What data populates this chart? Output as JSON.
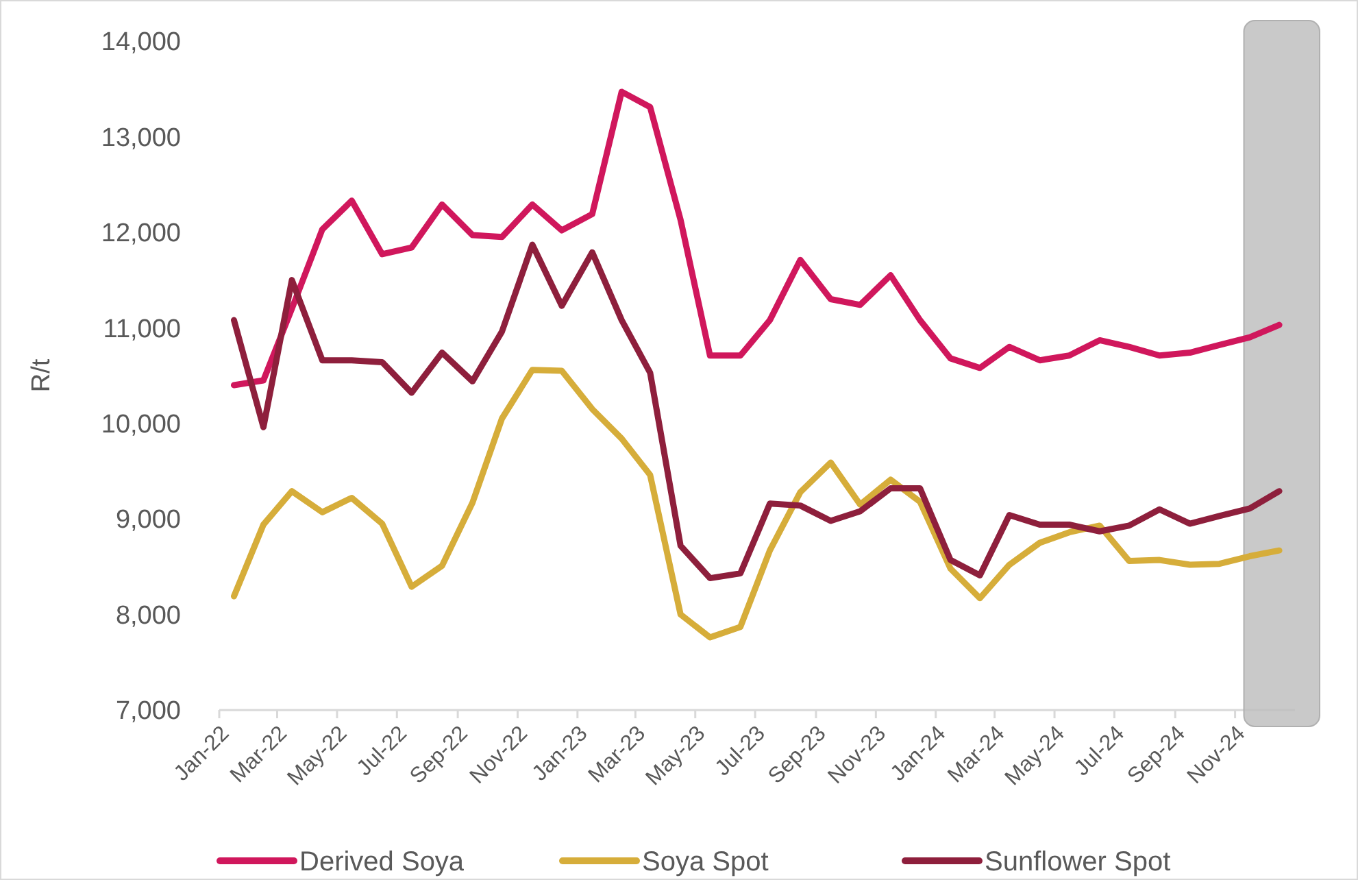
{
  "chart_data": {
    "type": "line",
    "ylabel": "R/t",
    "x": [
      "2022-01-16",
      "2022-02-15",
      "2022-03-16",
      "2022-04-16",
      "2022-05-16",
      "2022-06-16",
      "2022-07-16",
      "2022-08-16",
      "2022-09-16",
      "2022-10-16",
      "2022-11-16",
      "2022-12-16",
      "2023-01-16",
      "2023-02-15",
      "2023-03-16",
      "2023-04-16",
      "2023-05-16",
      "2023-06-16",
      "2023-07-16",
      "2023-08-16",
      "2023-09-16",
      "2023-10-16",
      "2023-11-16",
      "2023-12-16",
      "2024-01-16",
      "2024-02-15",
      "2024-03-16",
      "2024-04-16",
      "2024-05-16",
      "2024-06-16",
      "2024-07-16",
      "2024-08-16",
      "2024-09-16",
      "2024-10-16",
      "2024-11-16",
      "2024-12-16"
    ],
    "series": [
      {
        "name": "Derived Soya",
        "color": "#d0175c",
        "values": [
          10400,
          10450,
          11200,
          12030,
          12330,
          11770,
          11840,
          12290,
          11970,
          11950,
          12290,
          12020,
          12190,
          13470,
          13310,
          12130,
          10710,
          10710,
          11080,
          11710,
          11300,
          11240,
          11550,
          11080,
          10680,
          10580,
          10800,
          10660,
          10710,
          10870,
          10800,
          10710,
          10740,
          10820,
          10900,
          11030
        ]
      },
      {
        "name": "Soya Spot",
        "color": "#d6ad3a",
        "values": [
          8190,
          8940,
          9290,
          9070,
          9220,
          8950,
          8290,
          8510,
          9170,
          10050,
          10560,
          10550,
          10150,
          9840,
          9460,
          8000,
          7760,
          7870,
          8670,
          9280,
          9590,
          9150,
          9410,
          9180,
          8480,
          8170,
          8520,
          8750,
          8860,
          8930,
          8560,
          8570,
          8520,
          8530,
          8610,
          8670
        ]
      },
      {
        "name": "Sunflower Spot",
        "color": "#8e1f3c",
        "values": [
          11080,
          9960,
          11500,
          10660,
          10660,
          10640,
          10320,
          10740,
          10440,
          10960,
          11870,
          11230,
          11790,
          11080,
          10530,
          8720,
          8380,
          8430,
          9160,
          9140,
          8980,
          9080,
          9320,
          9320,
          8570,
          8410,
          9040,
          8940,
          8940,
          8870,
          8930,
          9100,
          8950,
          9030,
          9110,
          9290
        ]
      }
    ],
    "xlim": [
      "2022-01-01",
      "2025-01-01"
    ],
    "xticks": [
      {
        "value": "2022-01-01",
        "label": "Jan-22"
      },
      {
        "value": "2022-03-01",
        "label": "Mar-22"
      },
      {
        "value": "2022-05-01",
        "label": "May-22"
      },
      {
        "value": "2022-07-01",
        "label": "Jul-22"
      },
      {
        "value": "2022-09-01",
        "label": "Sep-22"
      },
      {
        "value": "2022-11-01",
        "label": "Nov-22"
      },
      {
        "value": "2023-01-01",
        "label": "Jan-23"
      },
      {
        "value": "2023-03-01",
        "label": "Mar-23"
      },
      {
        "value": "2023-05-01",
        "label": "May-23"
      },
      {
        "value": "2023-07-01",
        "label": "Jul-23"
      },
      {
        "value": "2023-09-01",
        "label": "Sep-23"
      },
      {
        "value": "2023-11-01",
        "label": "Nov-23"
      },
      {
        "value": "2024-01-01",
        "label": "Jan-24"
      },
      {
        "value": "2024-03-01",
        "label": "Mar-24"
      },
      {
        "value": "2024-05-01",
        "label": "May-24"
      },
      {
        "value": "2024-07-01",
        "label": "Jul-24"
      },
      {
        "value": "2024-09-01",
        "label": "Sep-24"
      },
      {
        "value": "2024-11-01",
        "label": "Nov-24"
      }
    ],
    "ylim": [
      7000,
      14000
    ],
    "yticks": [
      {
        "value": 7000,
        "label": "7,000"
      },
      {
        "value": 8000,
        "label": "8,000"
      },
      {
        "value": 9000,
        "label": "9,000"
      },
      {
        "value": 10000,
        "label": "10,000"
      },
      {
        "value": 11000,
        "label": "11,000"
      },
      {
        "value": 12000,
        "label": "12,000"
      },
      {
        "value": 13000,
        "label": "13,000"
      },
      {
        "value": 14000,
        "label": "14,000"
      }
    ],
    "bands": [
      {
        "axis": "x",
        "from": "2024-11-10",
        "to": "2025-01-01",
        "color": "#bdbdbd"
      }
    ],
    "grid": false,
    "legend": "bottom",
    "marker": "none",
    "line_style": "solid"
  }
}
